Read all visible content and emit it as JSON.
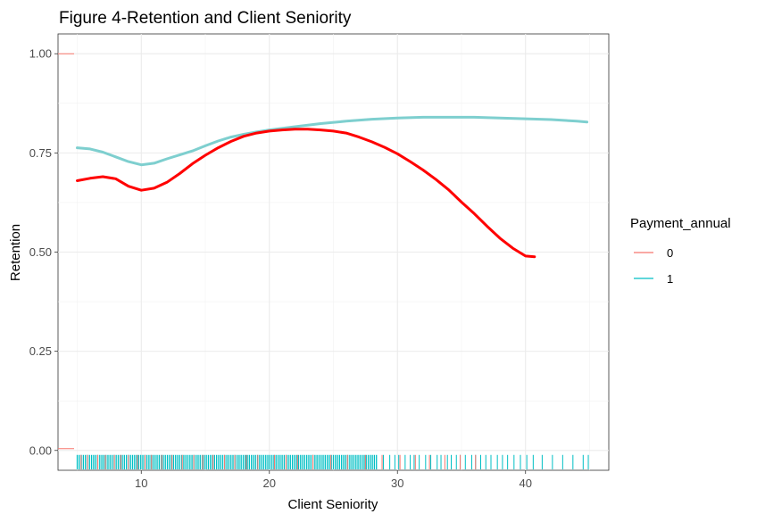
{
  "chart_data": {
    "type": "line",
    "title": "Figure 4-Retention and Client Seniority",
    "xlabel": "Client Seniority",
    "ylabel": "Retention",
    "xlim": [
      3.5,
      46.5
    ],
    "ylim": [
      -0.05,
      1.05
    ],
    "x_ticks": [
      10,
      20,
      30,
      40
    ],
    "y_ticks": [
      0.0,
      0.25,
      0.5,
      0.75,
      1.0
    ],
    "x_tick_labels": [
      "10",
      "20",
      "30",
      "40"
    ],
    "y_tick_labels": [
      "0.00",
      "0.25",
      "0.50",
      "0.75",
      "1.00"
    ],
    "grid": true,
    "legend": {
      "title": "Payment_annual",
      "position": "right",
      "entries": [
        "0",
        "1"
      ]
    },
    "series": [
      {
        "name": "0",
        "color": "#f8766d",
        "line_color": "#ff0000",
        "x": [
          5,
          6,
          7,
          8,
          9,
          10,
          11,
          12,
          13,
          14,
          15,
          16,
          17,
          18,
          19,
          20,
          21,
          22,
          23,
          24,
          25,
          26,
          27,
          28,
          29,
          30,
          31,
          32,
          33,
          34,
          35,
          36,
          37,
          38,
          39,
          40,
          40.7
        ],
        "y": [
          0.68,
          0.686,
          0.69,
          0.685,
          0.666,
          0.656,
          0.661,
          0.676,
          0.698,
          0.723,
          0.744,
          0.763,
          0.779,
          0.792,
          0.8,
          0.805,
          0.808,
          0.81,
          0.81,
          0.808,
          0.805,
          0.8,
          0.79,
          0.778,
          0.764,
          0.748,
          0.728,
          0.707,
          0.683,
          0.657,
          0.626,
          0.597,
          0.565,
          0.535,
          0.51,
          0.49,
          0.488
        ]
      },
      {
        "name": "1",
        "color": "#00bfc4",
        "line_color": "#7ecfcf",
        "x": [
          5,
          6,
          7,
          8,
          9,
          10,
          11,
          12,
          13,
          14,
          15,
          16,
          17,
          18,
          19,
          20,
          22,
          24,
          26,
          28,
          30,
          32,
          34,
          36,
          38,
          40,
          42,
          44,
          44.8
        ],
        "y": [
          0.763,
          0.76,
          0.752,
          0.74,
          0.728,
          0.72,
          0.724,
          0.735,
          0.745,
          0.755,
          0.768,
          0.78,
          0.79,
          0.797,
          0.803,
          0.808,
          0.816,
          0.824,
          0.83,
          0.835,
          0.838,
          0.84,
          0.84,
          0.84,
          0.838,
          0.836,
          0.834,
          0.83,
          0.828
        ]
      }
    ],
    "rug": {
      "zero_x": [
        5.3,
        5.8,
        6.6,
        7.2,
        7.9,
        8.4,
        9.0,
        9.7,
        10.3,
        10.8,
        11.6,
        12.4,
        13.2,
        14.1,
        14.8,
        15.6,
        16.5,
        17.3,
        18.2,
        19.1,
        20.4,
        21.3,
        22.2,
        23.4,
        24.8,
        26.1,
        27.5,
        28.8,
        30.2,
        31.4,
        32.5,
        33.7,
        34.9,
        36.1
      ],
      "one_dense_range": [
        5,
        28.5
      ],
      "one_dense_step": 0.16,
      "one_sparse_x": [
        28.9,
        29.4,
        29.8,
        30.1,
        30.6,
        31.0,
        31.3,
        31.7,
        32.2,
        32.6,
        33.1,
        33.4,
        33.9,
        34.2,
        34.6,
        34.9,
        35.3,
        35.8,
        36.1,
        36.5,
        36.9,
        37.3,
        37.8,
        38.2,
        38.6,
        39.1,
        39.6,
        40.1,
        40.6,
        41.3,
        42.1,
        42.9,
        43.7,
        44.5,
        44.9
      ]
    }
  }
}
